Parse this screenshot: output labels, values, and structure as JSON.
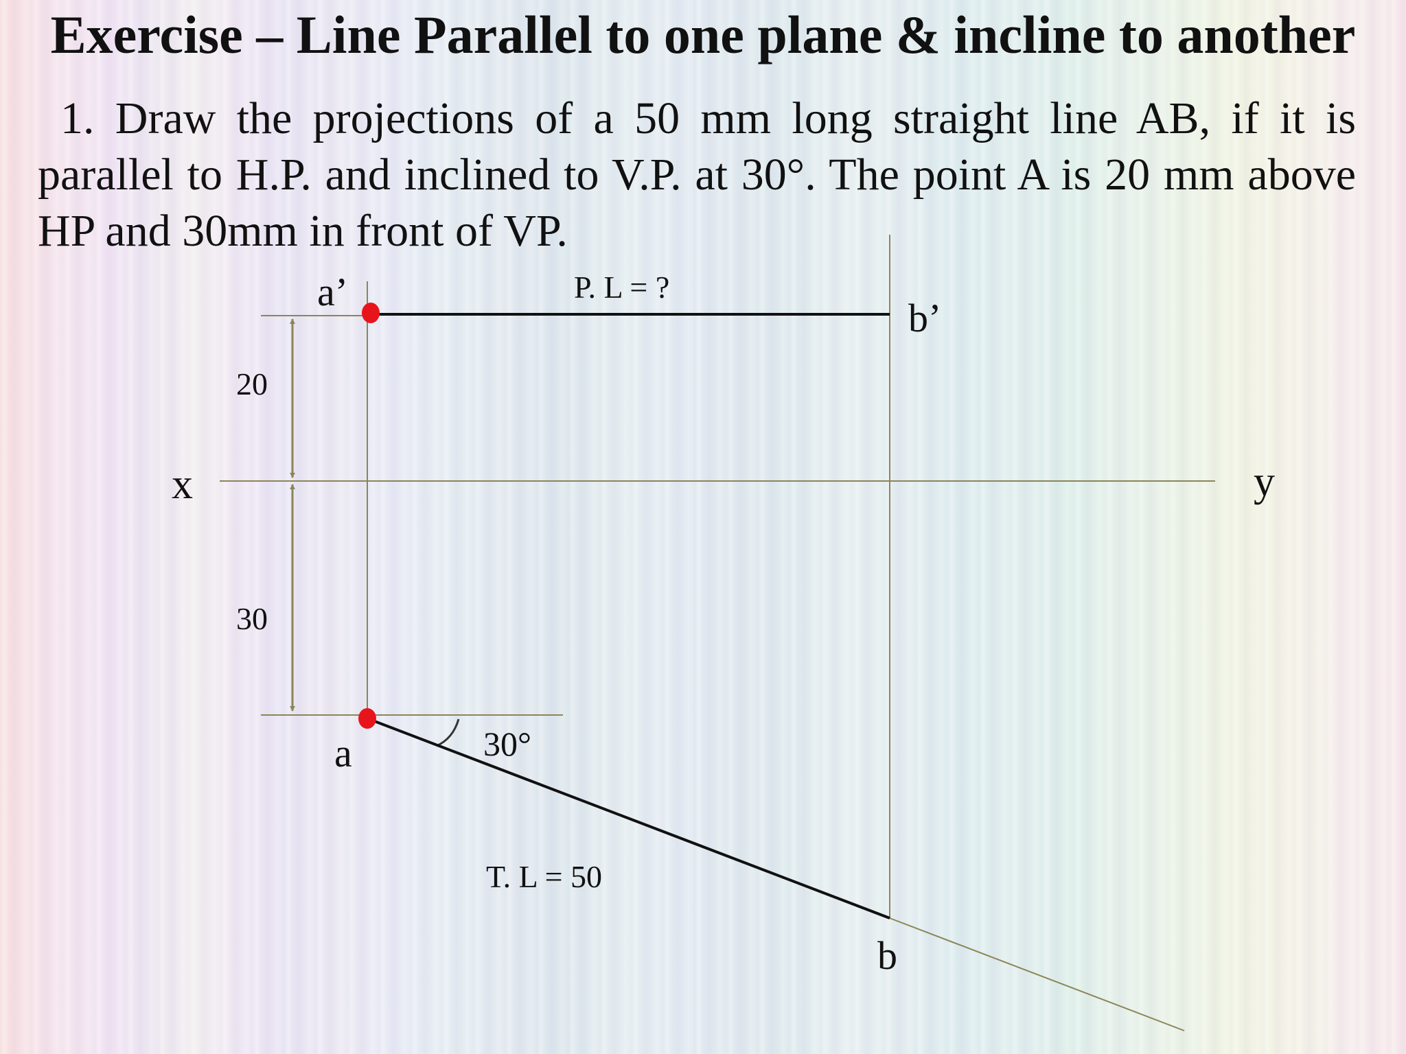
{
  "title": "Exercise – Line Parallel to one plane & incline to another",
  "problem_text": "1. Draw the projections of a 50 mm long straight line AB, if it is parallel to H.P. and inclined to V.P. at 30°. The point A is 20 mm above HP and 30mm in front of VP.",
  "diagram": {
    "labels": {
      "a_prime": "a’",
      "b_prime": "b’",
      "a": "a",
      "b": "b",
      "x": "x",
      "y": "y",
      "plan_length": "P. L = ?",
      "true_length": "T. L = 50",
      "height": "20",
      "distance": "30",
      "angle": "30°"
    },
    "colors": {
      "construction": "#8b8556",
      "line": "#111111",
      "point": "#e8141c"
    }
  }
}
